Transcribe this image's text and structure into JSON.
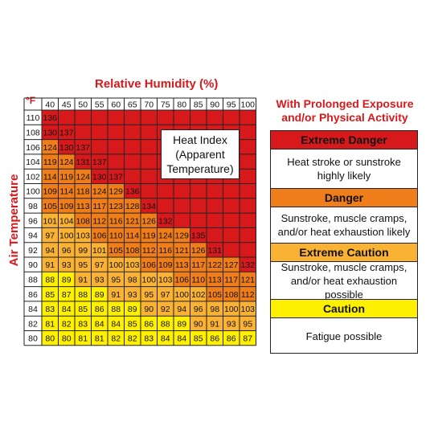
{
  "chart_data": {
    "type": "table",
    "title": "Heat Index (Apparent Temperature)",
    "column_header": "Relative Humidity (%)",
    "row_header": "Air Temperature",
    "unit_label": "°F",
    "humidity": [
      40,
      45,
      50,
      55,
      60,
      65,
      70,
      75,
      80,
      85,
      90,
      95,
      100
    ],
    "rows": [
      {
        "temp": 110,
        "values": [
          136
        ]
      },
      {
        "temp": 108,
        "values": [
          130,
          137
        ]
      },
      {
        "temp": 106,
        "values": [
          124,
          130,
          137
        ]
      },
      {
        "temp": 104,
        "values": [
          119,
          124,
          131,
          137
        ]
      },
      {
        "temp": 102,
        "values": [
          114,
          119,
          124,
          130,
          137
        ]
      },
      {
        "temp": 100,
        "values": [
          109,
          114,
          118,
          124,
          129,
          136
        ]
      },
      {
        "temp": 98,
        "values": [
          105,
          109,
          113,
          117,
          123,
          128,
          134
        ]
      },
      {
        "temp": 96,
        "values": [
          101,
          104,
          108,
          112,
          116,
          121,
          126,
          132
        ]
      },
      {
        "temp": 94,
        "values": [
          97,
          100,
          103,
          106,
          110,
          114,
          119,
          124,
          129,
          135
        ]
      },
      {
        "temp": 92,
        "values": [
          94,
          96,
          99,
          101,
          105,
          108,
          112,
          116,
          121,
          126,
          131
        ]
      },
      {
        "temp": 90,
        "values": [
          91,
          93,
          95,
          97,
          100,
          103,
          106,
          109,
          113,
          117,
          122,
          127,
          132
        ]
      },
      {
        "temp": 88,
        "values": [
          88,
          89,
          91,
          93,
          95,
          98,
          100,
          103,
          106,
          110,
          113,
          117,
          121
        ]
      },
      {
        "temp": 86,
        "values": [
          85,
          87,
          88,
          89,
          91,
          93,
          95,
          97,
          100,
          102,
          105,
          108,
          112
        ]
      },
      {
        "temp": 84,
        "values": [
          83,
          84,
          85,
          86,
          88,
          89,
          90,
          92,
          94,
          96,
          98,
          100,
          103
        ]
      },
      {
        "temp": 82,
        "values": [
          81,
          82,
          83,
          84,
          84,
          85,
          86,
          88,
          89,
          90,
          91,
          93,
          95
        ]
      },
      {
        "temp": 80,
        "values": [
          80,
          80,
          81,
          81,
          82,
          82,
          83,
          84,
          84,
          85,
          86,
          86,
          87
        ]
      }
    ],
    "categories": [
      {
        "name": "Extreme Danger",
        "min": 130,
        "color": "#d7191c"
      },
      {
        "name": "Danger",
        "min": 105,
        "color": "#ee7d1a"
      },
      {
        "name": "Extreme Caution",
        "min": 90,
        "color": "#f9b233"
      },
      {
        "name": "Caution",
        "min": 80,
        "color": "#fff000"
      }
    ]
  },
  "heat_index_label": [
    "Heat Index",
    "(Apparent",
    "Temperature)"
  ],
  "exposure_title": [
    "With Prolonged Exposure",
    "and/or Physical Activity"
  ],
  "legend": [
    {
      "label": "Extreme Danger",
      "color": "#d7191c",
      "description": [
        "Heat stroke or sunstroke",
        "highly likely"
      ]
    },
    {
      "label": "Danger",
      "color": "#ee7d1a",
      "description": [
        "Sunstroke, muscle cramps,",
        "and/or heat exhaustion likely"
      ]
    },
    {
      "label": "Extreme Caution",
      "color": "#f9b233",
      "description": [
        "Sunstroke, muscle cramps,",
        "and/or heat exhaustion possible"
      ]
    },
    {
      "label": "Caution",
      "color": "#fff000",
      "description": [
        "Fatigue possible"
      ]
    }
  ],
  "colors": {
    "accent_red": "#d7191c",
    "grid_line": "#222222"
  }
}
